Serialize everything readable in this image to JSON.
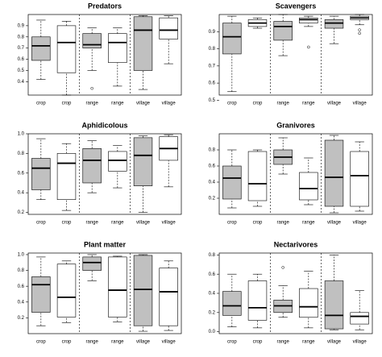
{
  "chart_data": [
    {
      "type": "box",
      "title": "Predators",
      "categories": [
        "crop",
        "crop",
        "range",
        "range",
        "village",
        "village"
      ],
      "colors": [
        "#c0c0c0",
        "#ffffff",
        "#c0c0c0",
        "#ffffff",
        "#c0c0c0",
        "#ffffff"
      ],
      "boxes": [
        {
          "min": 0.42,
          "q1": 0.59,
          "median": 0.72,
          "q3": 0.8,
          "max": 0.95,
          "outliers": []
        },
        {
          "min": 0.28,
          "q1": 0.48,
          "median": 0.75,
          "q3": 0.9,
          "max": 0.94,
          "outliers": []
        },
        {
          "min": 0.5,
          "q1": 0.7,
          "median": 0.73,
          "q3": 0.83,
          "max": 0.88,
          "outliers": [
            0.34
          ]
        },
        {
          "min": 0.36,
          "q1": 0.57,
          "median": 0.75,
          "q3": 0.83,
          "max": 0.88,
          "outliers": []
        },
        {
          "min": 0.33,
          "q1": 0.5,
          "median": 0.86,
          "q3": 0.98,
          "max": 0.99,
          "outliers": []
        },
        {
          "min": 0.56,
          "q1": 0.78,
          "median": 0.86,
          "q3": 0.97,
          "max": 0.99,
          "outliers": []
        }
      ],
      "ylim": [
        0.28,
        1.0
      ],
      "yticks": [
        0.4,
        0.5,
        0.6,
        0.7,
        0.8,
        0.9
      ]
    },
    {
      "type": "box",
      "title": "Scavengers",
      "categories": [
        "crop",
        "crop",
        "range",
        "range",
        "village",
        "village"
      ],
      "colors": [
        "#c0c0c0",
        "#ffffff",
        "#c0c0c0",
        "#ffffff",
        "#c0c0c0",
        "#ffffff"
      ],
      "boxes": [
        {
          "min": 0.55,
          "q1": 0.77,
          "median": 0.87,
          "q3": 0.95,
          "max": 0.99,
          "outliers": []
        },
        {
          "min": 0.92,
          "q1": 0.93,
          "median": 0.95,
          "q3": 0.97,
          "max": 0.98,
          "outliers": []
        },
        {
          "min": 0.76,
          "q1": 0.85,
          "median": 0.93,
          "q3": 0.96,
          "max": 1.0,
          "outliers": []
        },
        {
          "min": 0.93,
          "q1": 0.95,
          "median": 0.97,
          "q3": 0.98,
          "max": 0.99,
          "outliers": [
            0.81
          ]
        },
        {
          "min": 0.83,
          "q1": 0.92,
          "median": 0.95,
          "q3": 0.97,
          "max": 0.99,
          "outliers": []
        },
        {
          "min": 0.94,
          "q1": 0.97,
          "median": 0.98,
          "q3": 0.99,
          "max": 1.0,
          "outliers": [
            0.91,
            0.89
          ]
        }
      ],
      "ylim": [
        0.53,
        1.0
      ],
      "yticks": [
        0.5,
        0.6,
        0.7,
        0.8,
        0.9
      ]
    },
    {
      "type": "box",
      "title": "Aphidicolous",
      "categories": [
        "crop",
        "crop",
        "range",
        "range",
        "village",
        "village"
      ],
      "colors": [
        "#c0c0c0",
        "#ffffff",
        "#c0c0c0",
        "#ffffff",
        "#c0c0c0",
        "#ffffff"
      ],
      "boxes": [
        {
          "min": 0.33,
          "q1": 0.43,
          "median": 0.65,
          "q3": 0.75,
          "max": 0.95,
          "outliers": []
        },
        {
          "min": 0.22,
          "q1": 0.33,
          "median": 0.7,
          "q3": 0.8,
          "max": 0.9,
          "outliers": []
        },
        {
          "min": 0.4,
          "q1": 0.5,
          "median": 0.73,
          "q3": 0.85,
          "max": 0.93,
          "outliers": []
        },
        {
          "min": 0.45,
          "q1": 0.62,
          "median": 0.73,
          "q3": 0.82,
          "max": 0.88,
          "outliers": []
        },
        {
          "min": 0.2,
          "q1": 0.47,
          "median": 0.78,
          "q3": 0.96,
          "max": 0.98,
          "outliers": []
        },
        {
          "min": 0.46,
          "q1": 0.73,
          "median": 0.85,
          "q3": 0.97,
          "max": 0.99,
          "outliers": []
        }
      ],
      "ylim": [
        0.18,
        1.0
      ],
      "yticks": [
        0.2,
        0.4,
        0.6,
        0.8,
        {
          "value": 1,
          "label": "1.0"
        }
      ]
    },
    {
      "type": "box",
      "title": "Granivores",
      "categories": [
        "crop",
        "crop",
        "range",
        "range",
        "village",
        "village"
      ],
      "colors": [
        "#c0c0c0",
        "#ffffff",
        "#c0c0c0",
        "#ffffff",
        "#c0c0c0",
        "#ffffff"
      ],
      "boxes": [
        {
          "min": 0.08,
          "q1": 0.19,
          "median": 0.45,
          "q3": 0.6,
          "max": 0.8,
          "outliers": []
        },
        {
          "min": 0.1,
          "q1": 0.17,
          "median": 0.38,
          "q3": 0.78,
          "max": 0.8,
          "outliers": []
        },
        {
          "min": 0.5,
          "q1": 0.62,
          "median": 0.71,
          "q3": 0.8,
          "max": 0.95,
          "outliers": []
        },
        {
          "min": 0.12,
          "q1": 0.18,
          "median": 0.32,
          "q3": 0.52,
          "max": 0.7,
          "outliers": []
        },
        {
          "min": 0.02,
          "q1": 0.1,
          "median": 0.46,
          "q3": 0.92,
          "max": 0.98,
          "outliers": []
        },
        {
          "min": 0.04,
          "q1": 0.1,
          "median": 0.48,
          "q3": 0.78,
          "max": 0.9,
          "outliers": []
        }
      ],
      "ylim": [
        0.0,
        1.0
      ],
      "yticks": [
        0.2,
        0.4,
        0.6,
        0.8
      ]
    },
    {
      "type": "box",
      "title": "Plant matter",
      "categories": [
        "crop",
        "crop",
        "range",
        "range",
        "village",
        "village"
      ],
      "colors": [
        "#c0c0c0",
        "#ffffff",
        "#c0c0c0",
        "#ffffff",
        "#c0c0c0",
        "#ffffff"
      ],
      "boxes": [
        {
          "min": 0.1,
          "q1": 0.27,
          "median": 0.62,
          "q3": 0.72,
          "max": 0.97,
          "outliers": []
        },
        {
          "min": 0.14,
          "q1": 0.21,
          "median": 0.46,
          "q3": 0.88,
          "max": 0.92,
          "outliers": []
        },
        {
          "min": 0.67,
          "q1": 0.8,
          "median": 0.9,
          "q3": 0.97,
          "max": 1.0,
          "outliers": []
        },
        {
          "min": 0.15,
          "q1": 0.21,
          "median": 0.55,
          "q3": 0.97,
          "max": 0.98,
          "outliers": []
        },
        {
          "min": 0.03,
          "q1": 0.1,
          "median": 0.56,
          "q3": 0.99,
          "max": 1.0,
          "outliers": []
        },
        {
          "min": 0.04,
          "q1": 0.1,
          "median": 0.53,
          "q3": 0.83,
          "max": 0.92,
          "outliers": []
        }
      ],
      "ylim": [
        0.0,
        1.02
      ],
      "yticks": [
        0.2,
        0.4,
        0.6,
        0.8,
        {
          "value": 1,
          "label": "1.0"
        }
      ]
    },
    {
      "type": "box",
      "title": "Nectarivores",
      "categories": [
        "crop",
        "crop",
        "range",
        "range",
        "village",
        "village"
      ],
      "colors": [
        "#c0c0c0",
        "#ffffff",
        "#c0c0c0",
        "#ffffff",
        "#c0c0c0",
        "#ffffff"
      ],
      "boxes": [
        {
          "min": 0.05,
          "q1": 0.17,
          "median": 0.27,
          "q3": 0.42,
          "max": 0.6,
          "outliers": []
        },
        {
          "min": 0.04,
          "q1": 0.12,
          "median": 0.25,
          "q3": 0.53,
          "max": 0.6,
          "outliers": []
        },
        {
          "min": 0.15,
          "q1": 0.2,
          "median": 0.27,
          "q3": 0.33,
          "max": 0.48,
          "outliers": [
            0.67
          ]
        },
        {
          "min": 0.04,
          "q1": 0.15,
          "median": 0.26,
          "q3": 0.45,
          "max": 0.63,
          "outliers": []
        },
        {
          "min": 0.02,
          "q1": 0.03,
          "median": 0.17,
          "q3": 0.53,
          "max": 0.8,
          "outliers": []
        },
        {
          "min": 0.02,
          "q1": 0.08,
          "median": 0.16,
          "q3": 0.2,
          "max": 0.43,
          "outliers": []
        }
      ],
      "ylim": [
        -0.02,
        0.82
      ],
      "yticks": [
        {
          "value": 0,
          "label": "0.0"
        },
        0.2,
        0.4,
        0.6,
        0.8
      ]
    }
  ]
}
